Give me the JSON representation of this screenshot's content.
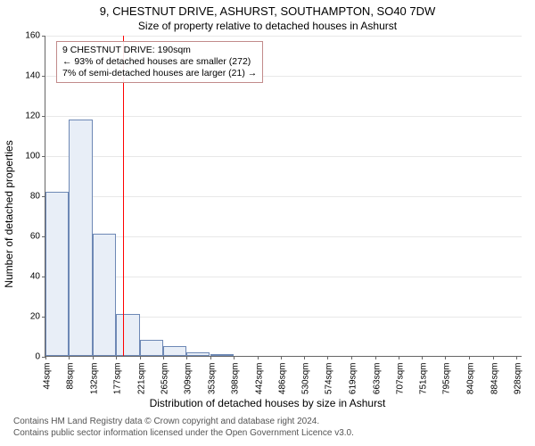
{
  "title": "9, CHESTNUT DRIVE, ASHURST, SOUTHAMPTON, SO40 7DW",
  "subtitle": "Size of property relative to detached houses in Ashurst",
  "ylabel": "Number of detached properties",
  "xlabel": "Distribution of detached houses by size in Ashurst",
  "chart": {
    "type": "histogram",
    "ymax": 160,
    "yticks": [
      0,
      20,
      40,
      60,
      80,
      100,
      120,
      140,
      160
    ],
    "xticks": [
      "44sqm",
      "88sqm",
      "132sqm",
      "177sqm",
      "221sqm",
      "265sqm",
      "309sqm",
      "353sqm",
      "398sqm",
      "442sqm",
      "486sqm",
      "530sqm",
      "574sqm",
      "619sqm",
      "663sqm",
      "707sqm",
      "751sqm",
      "795sqm",
      "840sqm",
      "884sqm",
      "928sqm"
    ],
    "bin_width": 44,
    "x_min": 44,
    "x_max": 940,
    "bars": [
      {
        "x": 44,
        "h": 82
      },
      {
        "x": 88,
        "h": 118
      },
      {
        "x": 132,
        "h": 61
      },
      {
        "x": 177,
        "h": 21
      },
      {
        "x": 221,
        "h": 8
      },
      {
        "x": 265,
        "h": 5
      },
      {
        "x": 309,
        "h": 2
      },
      {
        "x": 353,
        "h": 1
      }
    ],
    "bar_fill": "#e8eef7",
    "bar_stroke": "#6d88b5",
    "grid_color": "#e8e8e8",
    "background": "#ffffff",
    "reference_line": {
      "x": 190,
      "color": "#ff0000"
    }
  },
  "annotation": {
    "line1": "9 CHESTNUT DRIVE: 190sqm",
    "line2": "← 93% of detached houses are smaller (272)",
    "line3": "7% of semi-detached houses are larger (21) →",
    "border_color": "#c28b8b"
  },
  "attribution": {
    "line1": "Contains HM Land Registry data © Crown copyright and database right 2024.",
    "line2": "Contains public sector information licensed under the Open Government Licence v3.0."
  }
}
